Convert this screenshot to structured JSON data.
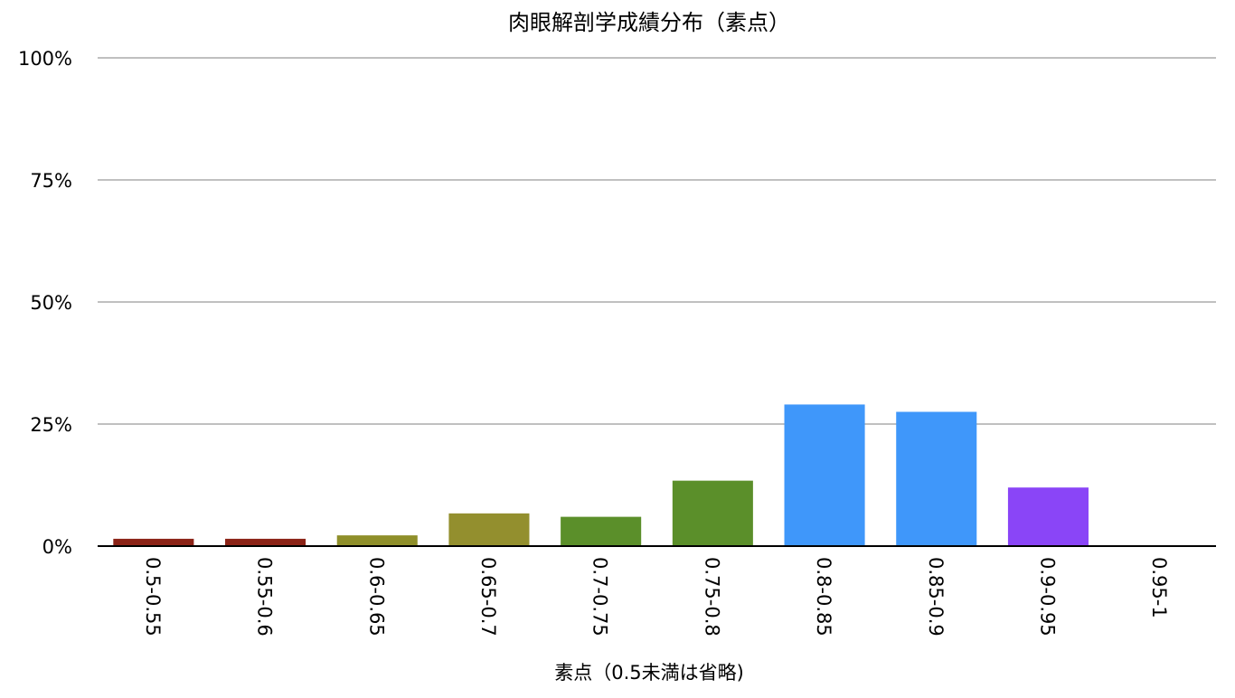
{
  "chart_data": {
    "type": "bar",
    "title": "肉眼解剖学成績分布（素点）",
    "xlabel": "素点（0.5未満は省略)",
    "ylabel": "",
    "ylim": [
      0,
      100
    ],
    "y_ticks": [
      {
        "value": 100,
        "label": "100%"
      },
      {
        "value": 75,
        "label": "75%"
      },
      {
        "value": 50,
        "label": "50%"
      },
      {
        "value": 25,
        "label": "25%"
      },
      {
        "value": 0,
        "label": "0%"
      }
    ],
    "grid": true,
    "legend": "none",
    "x_tick_rotation": "vertical",
    "categories": [
      "0.5-0.55",
      "0.55-0.6",
      "0.6-0.65",
      "0.65-0.7",
      "0.7-0.75",
      "0.75-0.8",
      "0.8-0.85",
      "0.85-0.9",
      "0.9-0.95",
      "0.95-1"
    ],
    "values": [
      1.5,
      1.5,
      2.2,
      6.7,
      6.0,
      13.4,
      29.0,
      27.5,
      12.0,
      0
    ],
    "bar_colors": [
      "#8b2317",
      "#8b2317",
      "#8f8f2a",
      "#938f2e",
      "#5b8f2a",
      "#5b8f2a",
      "#3f97fa",
      "#3f97fa",
      "#8a45f7",
      "#8a45f7"
    ],
    "grid_color": "#c0c0c0",
    "axis_color": "#000000"
  }
}
